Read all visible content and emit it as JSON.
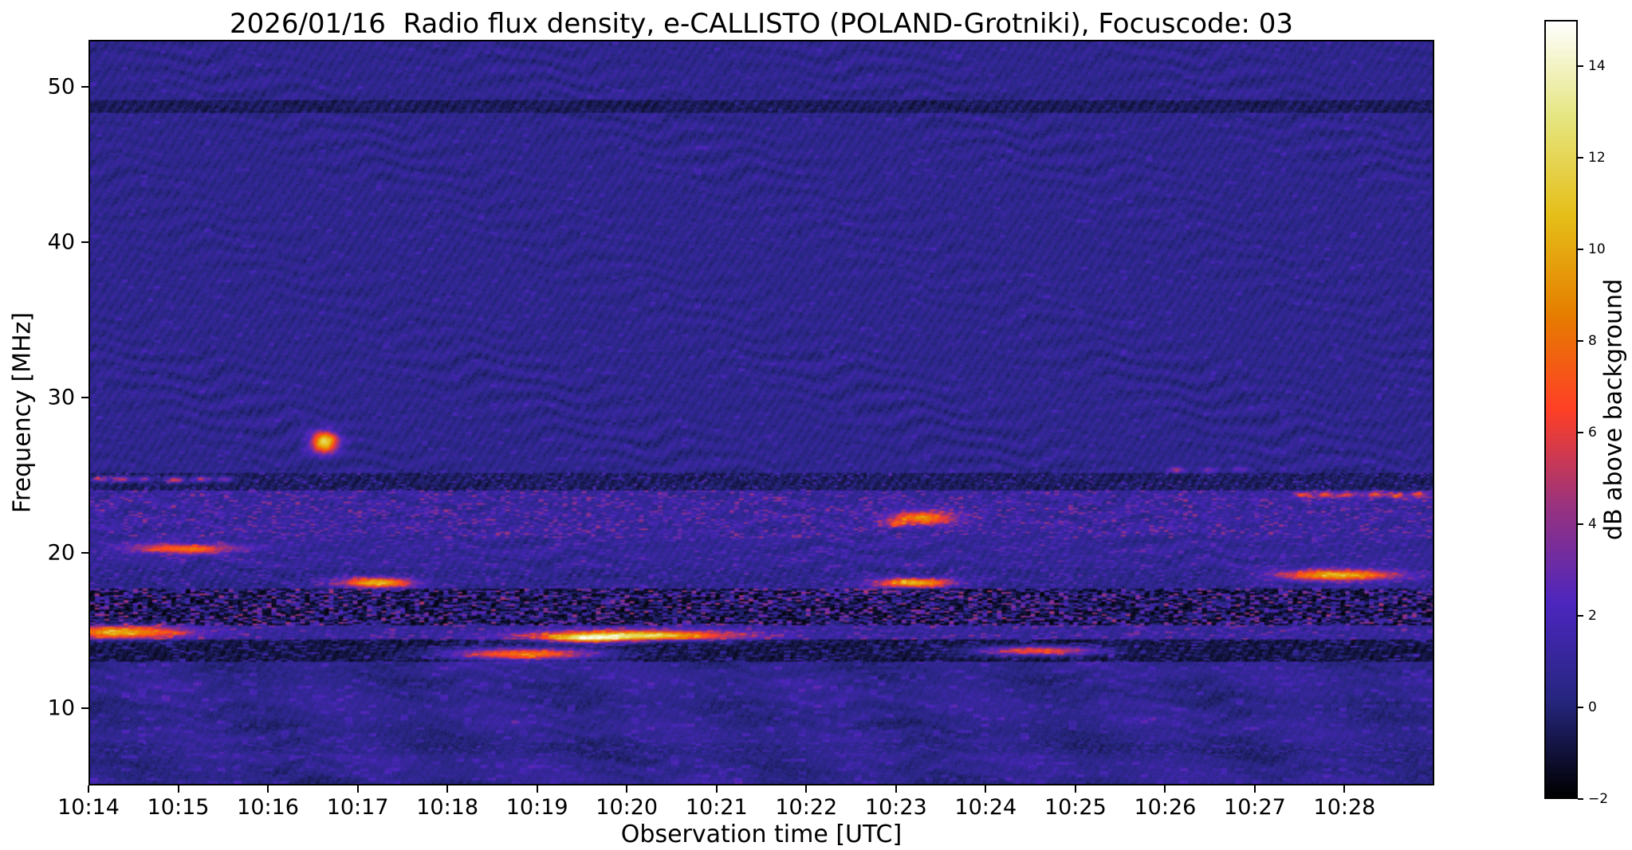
{
  "chart_data": {
    "type": "heatmap",
    "title": "2026/01/16  Radio flux density, e-CALLISTO (POLAND-Grotniki), Focuscode: 03",
    "xlabel": "Observation time [UTC]",
    "ylabel": "Frequency [MHz]",
    "colorbar_label": "dB above background",
    "x_ticks": [
      {
        "label": "10:14",
        "minute": 0
      },
      {
        "label": "10:15",
        "minute": 1
      },
      {
        "label": "10:16",
        "minute": 2
      },
      {
        "label": "10:17",
        "minute": 3
      },
      {
        "label": "10:18",
        "minute": 4
      },
      {
        "label": "10:19",
        "minute": 5
      },
      {
        "label": "10:20",
        "minute": 6
      },
      {
        "label": "10:21",
        "minute": 7
      },
      {
        "label": "10:22",
        "minute": 8
      },
      {
        "label": "10:23",
        "minute": 9
      },
      {
        "label": "10:24",
        "minute": 10
      },
      {
        "label": "10:25",
        "minute": 11
      },
      {
        "label": "10:26",
        "minute": 12
      },
      {
        "label": "10:27",
        "minute": 13
      },
      {
        "label": "10:28",
        "minute": 14
      }
    ],
    "x_end_minutes": 15,
    "y_ticks": [
      {
        "label": "10",
        "mhz": 10
      },
      {
        "label": "20",
        "mhz": 20
      },
      {
        "label": "30",
        "mhz": 30
      },
      {
        "label": "40",
        "mhz": 40
      },
      {
        "label": "50",
        "mhz": 50
      }
    ],
    "freq_range_mhz": [
      5,
      53
    ],
    "value_range_db": [
      -2,
      15
    ],
    "colorbar_ticks": [
      {
        "label": "−2",
        "value": -2
      },
      {
        "label": "0",
        "value": 0
      },
      {
        "label": "2",
        "value": 2
      },
      {
        "label": "4",
        "value": 4
      },
      {
        "label": "6",
        "value": 6
      },
      {
        "label": "8",
        "value": 8
      },
      {
        "label": "10",
        "value": 10
      },
      {
        "label": "12",
        "value": 12
      },
      {
        "label": "14",
        "value": 14
      }
    ],
    "colormap_stops": [
      [
        0,
        0,
        0
      ],
      [
        0.15,
        0.15,
        0.5
      ],
      [
        0.3,
        0.15,
        0.75
      ],
      [
        0.6,
        0.2,
        0.5
      ],
      [
        1,
        0.25,
        0.15
      ],
      [
        0.9,
        0.5,
        0
      ],
      [
        0.9,
        0.75,
        0.1
      ],
      [
        0.9,
        0.9,
        0.5
      ],
      [
        1,
        1,
        1
      ]
    ],
    "background_level_db": 0.55,
    "bands": [
      {
        "lo": 6.9,
        "hi": 7.7,
        "base": 0.25,
        "ripple": 0.2,
        "density": 0.3,
        "amp": 1.8,
        "cw": 3,
        "ch": 1
      },
      {
        "lo": 12.9,
        "hi": 14.3,
        "base": -0.9,
        "ripple": 0.12,
        "density": 0.28,
        "amp": 2.6,
        "cw": 4,
        "ch": 1
      },
      {
        "lo": 14.3,
        "hi": 15.3,
        "base": 0.9,
        "ripple": 0.2,
        "density": 0.3,
        "amp": 3.0,
        "cw": 4,
        "ch": 1
      },
      {
        "lo": 15.3,
        "hi": 17.65,
        "base": -1.35,
        "ripple": 0.1,
        "density": 0.6,
        "amp": 6.0,
        "cw": 3,
        "ch": 1
      },
      {
        "lo": 17.65,
        "hi": 18.9,
        "base": 0.4,
        "ripple": 0.35,
        "density": 0.35,
        "amp": 2.2,
        "cw": 3,
        "ch": 1
      },
      {
        "lo": 18.9,
        "hi": 20.9,
        "base": 0.8,
        "ripple": 0.5,
        "density": 0.25,
        "amp": 2.0,
        "cw": 4,
        "ch": 1
      },
      {
        "lo": 20.9,
        "hi": 23.95,
        "base": 0.9,
        "ripple": 0.5,
        "density": 0.4,
        "amp": 3.2,
        "cw": 3,
        "ch": 1
      },
      {
        "lo": 23.95,
        "hi": 25.1,
        "base": -0.45,
        "ripple": 0.15,
        "density": 0.18,
        "amp": 3.0,
        "cw": 2,
        "ch": 1
      },
      {
        "lo": 48.4,
        "hi": 49.2,
        "base": -0.5,
        "ripple": 0.15,
        "density": 0.05,
        "amp": 1.0,
        "cw": 3,
        "ch": 2
      },
      {
        "lo": 5.0,
        "hi": 12.9,
        "base": 0.55,
        "ripple": 0.35,
        "density": 0.22,
        "amp": 1.6,
        "cw": 5,
        "ch": 2
      }
    ],
    "bursts": [
      [
        0.35,
        14.8,
        0.5,
        0.28,
        9
      ],
      [
        1.05,
        20.2,
        0.4,
        0.22,
        7.5
      ],
      [
        2.62,
        27.1,
        0.1,
        0.45,
        12
      ],
      [
        3.2,
        18.0,
        0.28,
        0.22,
        10
      ],
      [
        4.85,
        13.4,
        0.55,
        0.25,
        9
      ],
      [
        5.55,
        14.35,
        0.3,
        0.18,
        8
      ],
      [
        6.1,
        14.6,
        0.75,
        0.22,
        11
      ],
      [
        9.2,
        18.0,
        0.3,
        0.2,
        10
      ],
      [
        9.3,
        22.2,
        0.25,
        0.3,
        8
      ],
      [
        10.6,
        13.6,
        0.45,
        0.2,
        7.5
      ],
      [
        13.95,
        18.5,
        0.45,
        0.25,
        10
      ]
    ],
    "dots": [
      [
        0.12,
        24.7,
        4.5
      ],
      [
        0.35,
        24.7,
        5.5
      ],
      [
        0.6,
        24.7,
        4
      ],
      [
        0.95,
        24.65,
        6.5
      ],
      [
        1.25,
        24.7,
        5
      ],
      [
        1.5,
        24.7,
        4
      ],
      [
        9.0,
        21.8,
        5
      ],
      [
        12.15,
        25.3,
        3.5
      ],
      [
        12.5,
        25.3,
        3
      ],
      [
        12.85,
        25.35,
        2.5
      ],
      [
        13.55,
        23.7,
        5
      ],
      [
        13.8,
        23.7,
        6.5
      ],
      [
        14.05,
        23.7,
        5.5
      ],
      [
        14.35,
        23.7,
        5
      ],
      [
        14.6,
        23.65,
        5
      ],
      [
        14.85,
        23.7,
        5.5
      ]
    ]
  }
}
